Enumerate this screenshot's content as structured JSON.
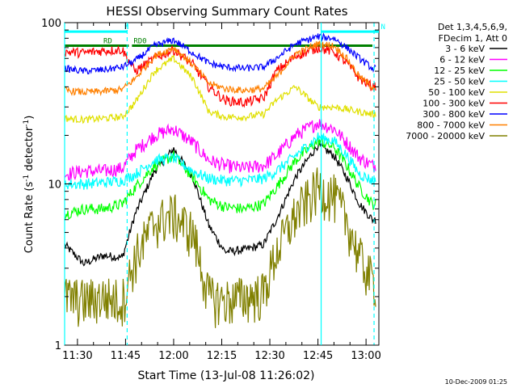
{
  "chart_data": {
    "type": "line",
    "title": "HESSI Observing Summary Count Rates",
    "xlabel": "Start Time (13-Jul-08 11:26:02)",
    "ylabel_main": "Count Rate (s",
    "ylabel_sup": "-1",
    "ylabel_rest": " detector",
    "ylabel_end": ")",
    "x_unit": "minutes since 11:26:02",
    "xlim": [
      0,
      98
    ],
    "ylim": [
      1,
      100
    ],
    "yscale": "log",
    "x_ticks": [
      {
        "label": "11:30",
        "value": 4
      },
      {
        "label": "11:45",
        "value": 19
      },
      {
        "label": "12:00",
        "value": 34
      },
      {
        "label": "12:15",
        "value": 49
      },
      {
        "label": "12:30",
        "value": 64
      },
      {
        "label": "12:45",
        "value": 79
      },
      {
        "label": "13:00",
        "value": 94
      }
    ],
    "y_major_ticks": [
      {
        "label": "1",
        "value": 1
      },
      {
        "label": "10",
        "value": 10
      },
      {
        "label": "100",
        "value": 100
      }
    ],
    "legend": {
      "header_line1": "Det 1,3,4,5,6,9,",
      "header_line2": "FDecim 1, Att 0",
      "placement": "right"
    },
    "series": [
      {
        "name": "3 - 6 keV",
        "color": "#000000",
        "x": [
          0,
          6,
          12,
          18,
          22,
          28,
          34,
          40,
          45,
          50,
          56,
          62,
          66,
          72,
          79,
          84,
          88,
          92,
          96
        ],
        "y": [
          4.2,
          3.2,
          3.6,
          3.5,
          6.5,
          12.0,
          16.5,
          11.0,
          5.5,
          3.8,
          3.9,
          4.2,
          6.0,
          11.0,
          17.5,
          15.0,
          11.0,
          7.5,
          6.0
        ]
      },
      {
        "name": "6 - 12 keV",
        "color": "#ff00ff",
        "x": [
          0,
          6,
          12,
          18,
          22,
          28,
          34,
          40,
          45,
          50,
          56,
          62,
          66,
          72,
          79,
          84,
          88,
          92,
          96
        ],
        "y": [
          11.5,
          12.0,
          12.0,
          12.5,
          16.0,
          20.0,
          22.0,
          18.0,
          14.0,
          13.0,
          12.5,
          13.0,
          15.0,
          20.0,
          24.0,
          22.0,
          18.0,
          14.5,
          13.0
        ]
      },
      {
        "name": "12 - 25 keV",
        "color": "#00ff00",
        "x": [
          0,
          6,
          12,
          18,
          22,
          28,
          34,
          40,
          45,
          50,
          56,
          62,
          66,
          72,
          79,
          84,
          88,
          92,
          96
        ],
        "y": [
          6.5,
          7.0,
          7.0,
          7.5,
          9.5,
          13.0,
          15.0,
          11.0,
          8.0,
          7.2,
          7.0,
          7.5,
          9.5,
          14.0,
          18.5,
          17.0,
          13.0,
          9.5,
          7.5
        ]
      },
      {
        "name": "25 - 50 keV",
        "color": "#00ffff",
        "x": [
          0,
          6,
          12,
          18,
          22,
          28,
          34,
          40,
          45,
          50,
          56,
          62,
          66,
          72,
          79,
          84,
          88,
          92,
          96
        ],
        "y": [
          10.0,
          10.0,
          10.2,
          10.5,
          11.5,
          14.0,
          14.5,
          12.0,
          10.8,
          10.5,
          10.5,
          10.8,
          12.0,
          15.0,
          19.5,
          18.5,
          15.0,
          11.5,
          10.5
        ]
      },
      {
        "name": "50 - 100 keV",
        "color": "#e0e000",
        "x": [
          0,
          6,
          12,
          18,
          22,
          28,
          34,
          40,
          45,
          50,
          56,
          62,
          66,
          72,
          79,
          84,
          88,
          92,
          96
        ],
        "y": [
          25.5,
          25.0,
          25.5,
          26.0,
          32.0,
          50.0,
          60.0,
          45.0,
          28.0,
          26.0,
          26.0,
          27.0,
          33.0,
          40.0,
          30.0,
          30.0,
          29.0,
          28.0,
          27.0
        ]
      },
      {
        "name": "100 - 300 keV",
        "color": "#ff0000",
        "x": [
          0,
          6,
          12,
          18,
          22,
          28,
          34,
          40,
          45,
          50,
          56,
          62,
          66,
          72,
          79,
          84,
          88,
          92,
          96
        ],
        "y": [
          66.0,
          65.0,
          67.0,
          68.0,
          50.0,
          60.0,
          68.0,
          55.0,
          40.0,
          33.0,
          32.0,
          34.0,
          50.0,
          62.0,
          70.0,
          66.0,
          56.0,
          45.0,
          40.0
        ]
      },
      {
        "name": "300 - 800 keV",
        "color": "#0000ff",
        "x": [
          0,
          6,
          12,
          18,
          22,
          28,
          34,
          40,
          45,
          50,
          56,
          62,
          66,
          72,
          79,
          84,
          88,
          92,
          96
        ],
        "y": [
          52.0,
          50.0,
          51.0,
          53.0,
          58.0,
          72.0,
          78.0,
          65.0,
          56.0,
          53.0,
          52.0,
          53.0,
          60.0,
          74.0,
          82.0,
          80.0,
          70.0,
          60.0,
          52.0
        ]
      },
      {
        "name": "800 - 7000 keV",
        "color": "#ff8000",
        "x": [
          0,
          6,
          12,
          18,
          22,
          28,
          34,
          40,
          45,
          50,
          56,
          62,
          66,
          72,
          79,
          84,
          88,
          92,
          96
        ],
        "y": [
          38.0,
          37.0,
          37.5,
          38.5,
          45.0,
          62.0,
          70.0,
          55.0,
          42.0,
          39.0,
          38.0,
          39.0,
          46.0,
          64.0,
          74.0,
          72.0,
          60.0,
          46.0,
          40.0
        ]
      },
      {
        "name": "7000 - 20000 keV",
        "color": "#808000",
        "x": [
          0,
          6,
          12,
          18,
          22,
          28,
          34,
          40,
          45,
          50,
          56,
          62,
          66,
          72,
          79,
          84,
          88,
          92,
          96
        ],
        "y": [
          2.0,
          1.9,
          2.0,
          1.9,
          3.5,
          5.8,
          6.5,
          5.0,
          2.0,
          1.9,
          2.0,
          2.1,
          3.8,
          6.5,
          9.5,
          8.5,
          6.0,
          3.5,
          2.5
        ]
      }
    ],
    "reference_lines": [
      {
        "label": "N",
        "color": "#00ffff",
        "x": [
          0,
          19.5
        ],
        "y": 88
      },
      {
        "label": "N",
        "color": "#00ffff",
        "x": [
          80,
          98
        ],
        "y": 88
      },
      {
        "label": "RD0",
        "color": "#008000",
        "x": [
          21,
          96
        ],
        "y": 72
      },
      {
        "label": "RD",
        "color": "#008000",
        "x": [
          0,
          20
        ],
        "y": 72
      }
    ],
    "vertical_markers": [
      {
        "x": 0,
        "color": "#00ffff",
        "style": "solid"
      },
      {
        "x": 19.5,
        "color": "#00ffff",
        "style": "dashed"
      },
      {
        "x": 80,
        "color": "#00ffff",
        "style": "solid"
      },
      {
        "x": 96.5,
        "color": "#00ffff",
        "style": "dashed"
      }
    ],
    "grid": false
  },
  "footer": {
    "timestamp": "10-Dec-2009 01:25"
  }
}
